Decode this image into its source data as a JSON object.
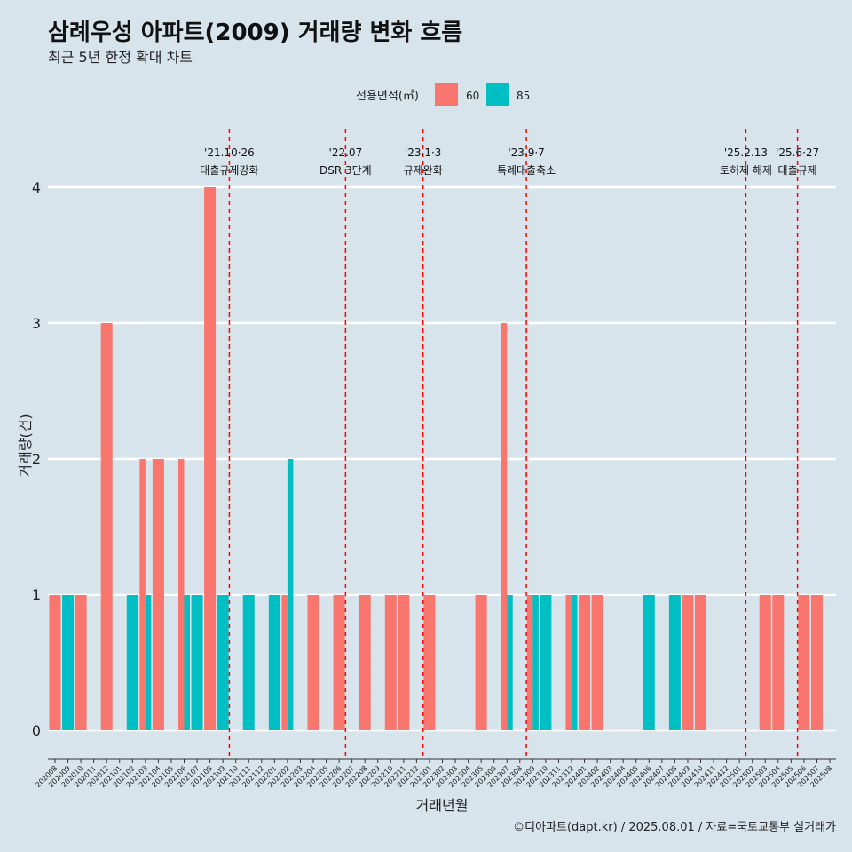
{
  "chart_data": {
    "type": "bar",
    "title": "삼례우성 아파트(2009) 거래량 변화 흐름",
    "subtitle": "최근 5년 한정 확대 차트",
    "xlabel": "거래년월",
    "ylabel": "거래량(건)",
    "caption": "©디아파트(dapt.kr) / 2025.08.01 / 자료=국토교통부 실거래가",
    "legend": {
      "title": "전용면적(㎡)",
      "position": "top",
      "items": [
        {
          "name": "60",
          "color": "#f8766d"
        },
        {
          "name": "85",
          "color": "#00bfc4"
        }
      ]
    },
    "ylim": [
      0,
      4
    ],
    "yticks": [
      0,
      1,
      2,
      3,
      4
    ],
    "grid": true,
    "categories": [
      "202008",
      "202009",
      "202010",
      "202011",
      "202012",
      "202101",
      "202102",
      "202103",
      "202104",
      "202105",
      "202106",
      "202107",
      "202108",
      "202109",
      "202110",
      "202111",
      "202112",
      "202201",
      "202202",
      "202203",
      "202204",
      "202205",
      "202206",
      "202207",
      "202208",
      "202209",
      "202210",
      "202211",
      "202212",
      "202301",
      "202302",
      "202303",
      "202304",
      "202305",
      "202306",
      "202307",
      "202308",
      "202309",
      "202310",
      "202311",
      "202312",
      "202401",
      "202402",
      "202403",
      "202404",
      "202405",
      "202406",
      "202407",
      "202408",
      "202409",
      "202410",
      "202411",
      "202412",
      "202501",
      "202502",
      "202503",
      "202504",
      "202505",
      "202506",
      "202507",
      "202508"
    ],
    "series": [
      {
        "name": "60",
        "color": "#f8766d",
        "values": [
          1,
          0,
          1,
          0,
          3,
          0,
          0,
          2,
          2,
          0,
          2,
          0,
          4,
          0,
          0,
          0,
          0,
          0,
          1,
          0,
          1,
          0,
          1,
          0,
          1,
          0,
          1,
          1,
          0,
          1,
          0,
          0,
          0,
          1,
          0,
          3,
          0,
          1,
          0,
          0,
          1,
          1,
          1,
          0,
          0,
          0,
          0,
          0,
          0,
          1,
          1,
          0,
          0,
          0,
          0,
          1,
          1,
          0,
          1,
          1,
          0
        ]
      },
      {
        "name": "85",
        "color": "#00bfc4",
        "values": [
          0,
          1,
          0,
          0,
          0,
          0,
          1,
          1,
          0,
          0,
          1,
          1,
          0,
          1,
          0,
          1,
          0,
          1,
          2,
          0,
          0,
          0,
          0,
          0,
          0,
          0,
          0,
          0,
          0,
          0,
          0,
          0,
          0,
          0,
          0,
          1,
          0,
          1,
          1,
          0,
          1,
          0,
          0,
          0,
          0,
          0,
          1,
          0,
          1,
          0,
          0,
          0,
          0,
          0,
          0,
          0,
          0,
          0,
          0,
          0,
          0
        ]
      }
    ],
    "annotations": [
      {
        "at": "202110",
        "line1": "'21.10·26",
        "line2": "대출규제강화"
      },
      {
        "at": "202207",
        "line1": "'22.07",
        "line2": "DSR 3단계"
      },
      {
        "at": "202301",
        "line1": "'23.1·3",
        "line2": "규제완화"
      },
      {
        "at": "202309",
        "line1": "'23.9·7",
        "line2": "특례대출축소"
      },
      {
        "at": "202502",
        "line1": "'25.2.13",
        "line2": "토허제 해제"
      },
      {
        "at": "202506",
        "line1": "'25.6·27",
        "line2": "대출규제"
      }
    ]
  }
}
